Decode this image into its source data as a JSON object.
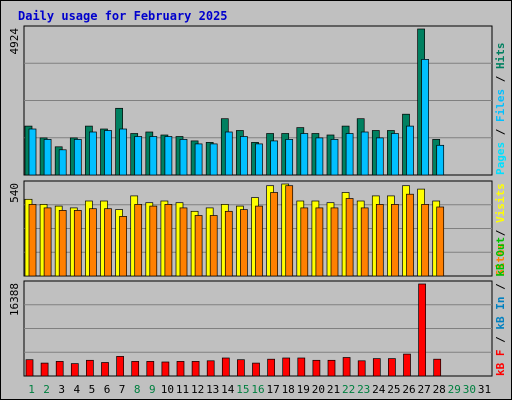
{
  "title": "Daily usage for February 2025",
  "colors": {
    "background": "#c0c0c0",
    "plot": "#c0c0c0",
    "grid": "#808080",
    "title": "#0000cc",
    "weekday": "#000000",
    "weekend": "#008040",
    "hits": "#008060",
    "files": "#00c0ff",
    "pages": "#00e0ff",
    "visits": "#ffff00",
    "sites": "#ff8000",
    "kb_in": "#0080c0",
    "kb_out": "#00c000",
    "kb_f": "#ff0000"
  },
  "legend_top": [
    {
      "key": "pages",
      "text": "Pages"
    },
    {
      "key": "sep",
      "text": " / "
    },
    {
      "key": "files",
      "text": "Files"
    },
    {
      "key": "sep",
      "text": " / "
    },
    {
      "key": "hits",
      "text": "Hits"
    }
  ],
  "legend_mid": [
    {
      "key": "sites",
      "text": "Sites"
    },
    {
      "key": "sep",
      "text": " / "
    },
    {
      "key": "visits",
      "text": "Visits"
    }
  ],
  "legend_bot": [
    {
      "key": "kb_f",
      "text": "kB F"
    },
    {
      "key": "sep",
      "text": " / "
    },
    {
      "key": "kb_in",
      "text": "kB In"
    },
    {
      "key": "sep",
      "text": " / "
    },
    {
      "key": "kb_out",
      "text": "kB Out"
    }
  ],
  "chart_data": [
    {
      "type": "bar",
      "panel": "hits-files",
      "ymax_label": "4924",
      "ylim": [
        0,
        4924
      ],
      "categories": [
        "1",
        "2",
        "3",
        "4",
        "5",
        "6",
        "7",
        "8",
        "9",
        "10",
        "11",
        "12",
        "13",
        "14",
        "15",
        "16",
        "17",
        "18",
        "19",
        "20",
        "21",
        "22",
        "23",
        "24",
        "25",
        "26",
        "27",
        "28",
        "29",
        "30",
        "31"
      ],
      "weekend_days": [
        1,
        2,
        8,
        9,
        15,
        16,
        22,
        23,
        29,
        30
      ],
      "series": [
        {
          "name": "Hits",
          "values": [
            1650,
            1250,
            950,
            1250,
            1650,
            1550,
            2250,
            1400,
            1450,
            1350,
            1300,
            1150,
            1100,
            1900,
            1500,
            1100,
            1400,
            1400,
            1600,
            1400,
            1350,
            1650,
            1900,
            1500,
            1500,
            2050,
            4924,
            1200,
            0,
            0,
            0
          ]
        },
        {
          "name": "Files",
          "values": [
            1550,
            1200,
            850,
            1200,
            1450,
            1500,
            1550,
            1300,
            1300,
            1300,
            1200,
            1050,
            1050,
            1450,
            1300,
            1050,
            1150,
            1200,
            1400,
            1250,
            1200,
            1400,
            1450,
            1250,
            1400,
            1650,
            3900,
            1000,
            0,
            0,
            0
          ]
        }
      ]
    },
    {
      "type": "bar",
      "panel": "visits-sites",
      "ymax_label": "540",
      "ylim": [
        0,
        540
      ],
      "categories": [
        "1",
        "2",
        "3",
        "4",
        "5",
        "6",
        "7",
        "8",
        "9",
        "10",
        "11",
        "12",
        "13",
        "14",
        "15",
        "16",
        "17",
        "18",
        "19",
        "20",
        "21",
        "22",
        "23",
        "24",
        "25",
        "26",
        "27",
        "28",
        "29",
        "30",
        "31"
      ],
      "weekend_days": [
        1,
        2,
        8,
        9,
        15,
        16,
        22,
        23,
        29,
        30
      ],
      "series": [
        {
          "name": "Visits",
          "values": [
            450,
            420,
            410,
            400,
            440,
            440,
            390,
            470,
            430,
            440,
            430,
            380,
            400,
            420,
            410,
            460,
            530,
            540,
            440,
            440,
            430,
            490,
            440,
            470,
            470,
            530,
            510,
            440,
            0,
            0,
            0
          ]
        },
        {
          "name": "Sites",
          "values": [
            420,
            400,
            385,
            385,
            395,
            395,
            350,
            420,
            410,
            420,
            400,
            355,
            355,
            380,
            390,
            410,
            490,
            530,
            400,
            400,
            400,
            455,
            400,
            420,
            420,
            480,
            420,
            405,
            0,
            0,
            0
          ]
        }
      ]
    },
    {
      "type": "bar",
      "panel": "kbytes",
      "ymax_label": "16388",
      "ylim": [
        0,
        16388
      ],
      "categories": [
        "1",
        "2",
        "3",
        "4",
        "5",
        "6",
        "7",
        "8",
        "9",
        "10",
        "11",
        "12",
        "13",
        "14",
        "15",
        "16",
        "17",
        "18",
        "19",
        "20",
        "21",
        "22",
        "23",
        "24",
        "25",
        "26",
        "27",
        "28",
        "29",
        "30",
        "31"
      ],
      "weekend_days": [
        1,
        2,
        8,
        9,
        15,
        16,
        22,
        23,
        29,
        30
      ],
      "series": [
        {
          "name": "kB F",
          "values": [
            2900,
            2300,
            2600,
            2200,
            2800,
            2400,
            3500,
            2600,
            2600,
            2500,
            2600,
            2600,
            2700,
            3200,
            2900,
            2300,
            3000,
            3200,
            3200,
            2800,
            2800,
            3300,
            2700,
            3100,
            3100,
            3900,
            16388,
            3000,
            0,
            0,
            0
          ]
        }
      ]
    }
  ]
}
